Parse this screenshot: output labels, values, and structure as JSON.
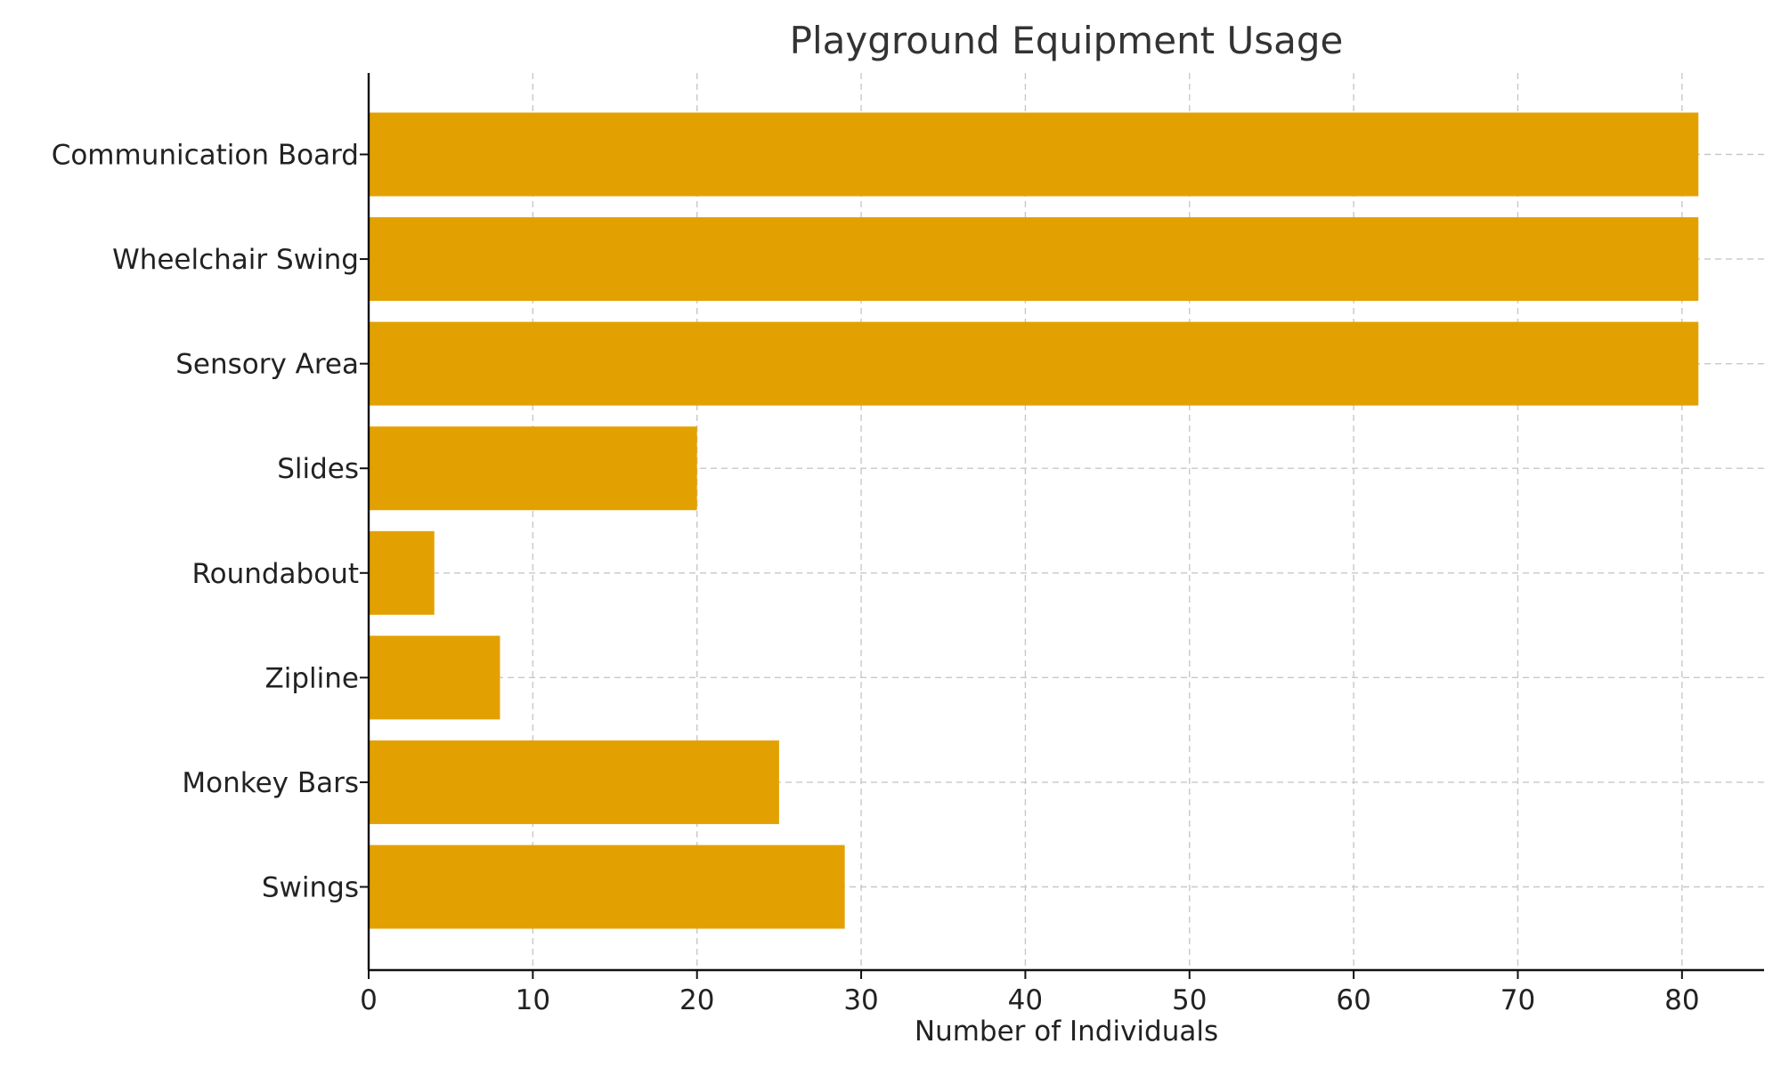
{
  "chart_data": {
    "type": "bar",
    "orientation": "horizontal",
    "title": "Playground Equipment Usage",
    "xlabel": "Number of Individuals",
    "ylabel": "",
    "categories": [
      "Swings",
      "Monkey Bars",
      "Zipline",
      "Roundabout",
      "Slides",
      "Sensory Area",
      "Wheelchair Swing",
      "Communication Board"
    ],
    "values": [
      29,
      25,
      8,
      4,
      20,
      81,
      81,
      81
    ],
    "xlim": [
      0,
      85
    ],
    "xticks": [
      0,
      10,
      20,
      30,
      40,
      50,
      60,
      70,
      80
    ],
    "grid": true,
    "bar_color": "#E3A101",
    "grid_color": "#C8C8C8",
    "axis_color": "#111111"
  }
}
